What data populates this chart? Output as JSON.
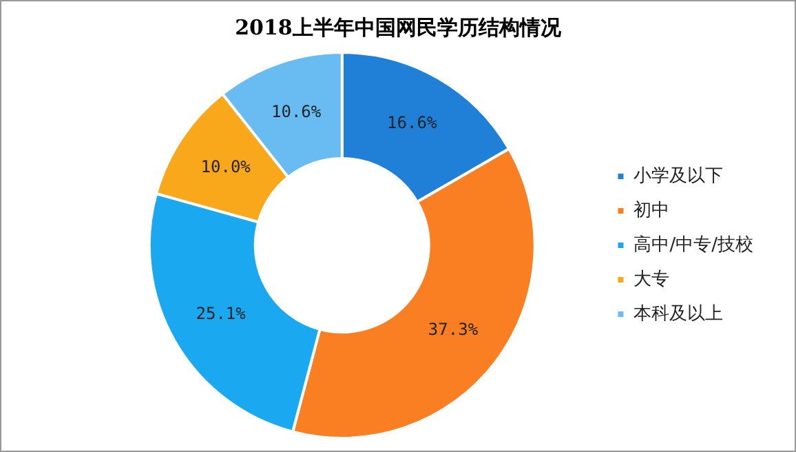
{
  "chart_data": {
    "type": "donut",
    "title": "2018上半年中国网民学历结构情况",
    "categories": [
      "小学及以下",
      "初中",
      "高中/中专/技校",
      "大专",
      "本科及以上"
    ],
    "values": [
      16.6,
      37.3,
      25.1,
      10.0,
      10.6
    ],
    "value_labels": [
      "16.6%",
      "37.3%",
      "25.1%",
      "10.0%",
      "10.6%"
    ],
    "colors": [
      "#2080d8",
      "#f97f22",
      "#1aa8f0",
      "#f9a81c",
      "#68bcf2"
    ],
    "legend": "right"
  }
}
